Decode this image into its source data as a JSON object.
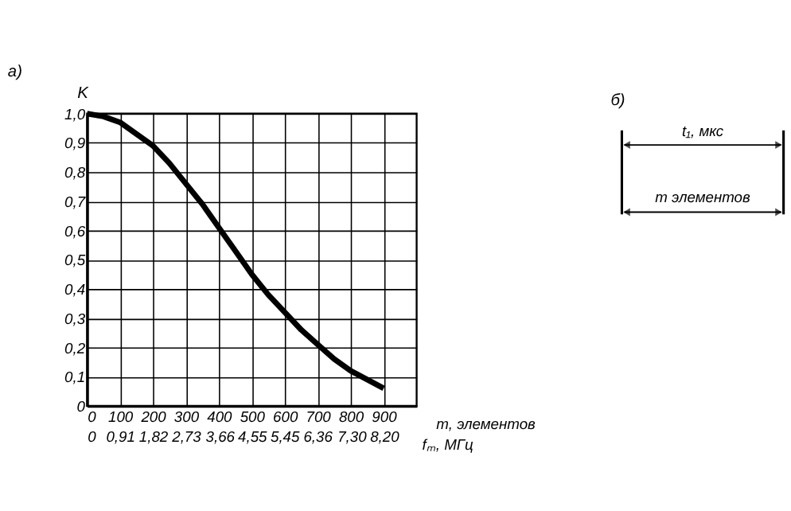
{
  "chart_data": [
    {
      "type": "line",
      "title": "а)",
      "ylabel": "K",
      "xlabel": "m, элементов",
      "x2label": "fₘ, МГц",
      "x": [
        0,
        50,
        100,
        150,
        200,
        250,
        300,
        350,
        400,
        450,
        500,
        550,
        600,
        650,
        700,
        750,
        800,
        850,
        900
      ],
      "series": [
        {
          "color": "#000000",
          "values": [
            1.0,
            0.99,
            0.97,
            0.93,
            0.89,
            0.83,
            0.76,
            0.69,
            0.61,
            0.53,
            0.45,
            0.38,
            0.32,
            0.26,
            0.21,
            0.16,
            0.12,
            0.09,
            0.06
          ]
        }
      ],
      "xlim": [
        0,
        1000
      ],
      "xticks": [
        0,
        100,
        200,
        300,
        400,
        500,
        600,
        700,
        800,
        900
      ],
      "x2lim": [
        0,
        9.1
      ],
      "x2ticks": [
        0,
        {
          "value": 0.91,
          "label": "0,91"
        },
        {
          "value": 1.82,
          "label": "1,82"
        },
        {
          "value": 2.73,
          "label": "2,73"
        },
        {
          "value": 3.66,
          "label": "3,66"
        },
        {
          "value": 4.55,
          "label": "4,55"
        },
        {
          "value": 5.45,
          "label": "5,45"
        },
        {
          "value": 6.36,
          "label": "6,36"
        },
        {
          "value": 7.3,
          "label": "7,30"
        },
        {
          "value": 8.2,
          "label": "8,20"
        }
      ],
      "ylim": [
        0,
        1.0
      ],
      "yticks": [
        0,
        {
          "value": 0.1,
          "label": "0,1"
        },
        {
          "value": 0.2,
          "label": "0,2"
        },
        {
          "value": 0.3,
          "label": "0,3"
        },
        {
          "value": 0.4,
          "label": "0,4"
        },
        {
          "value": 0.5,
          "label": "0,5"
        },
        {
          "value": 0.6,
          "label": "0,6"
        },
        {
          "value": 0.7,
          "label": "0,7"
        },
        {
          "value": 0.8,
          "label": "0,8"
        },
        {
          "value": 0.9,
          "label": "0,9"
        },
        {
          "value": 1.0,
          "label": "1,0"
        }
      ],
      "grid": true,
      "legend": false,
      "marker": "none",
      "line_style": "solid"
    },
    {
      "type": "other",
      "title": "б)",
      "annotations": [
        "t₁, мкс",
        "m элементов"
      ]
    }
  ]
}
